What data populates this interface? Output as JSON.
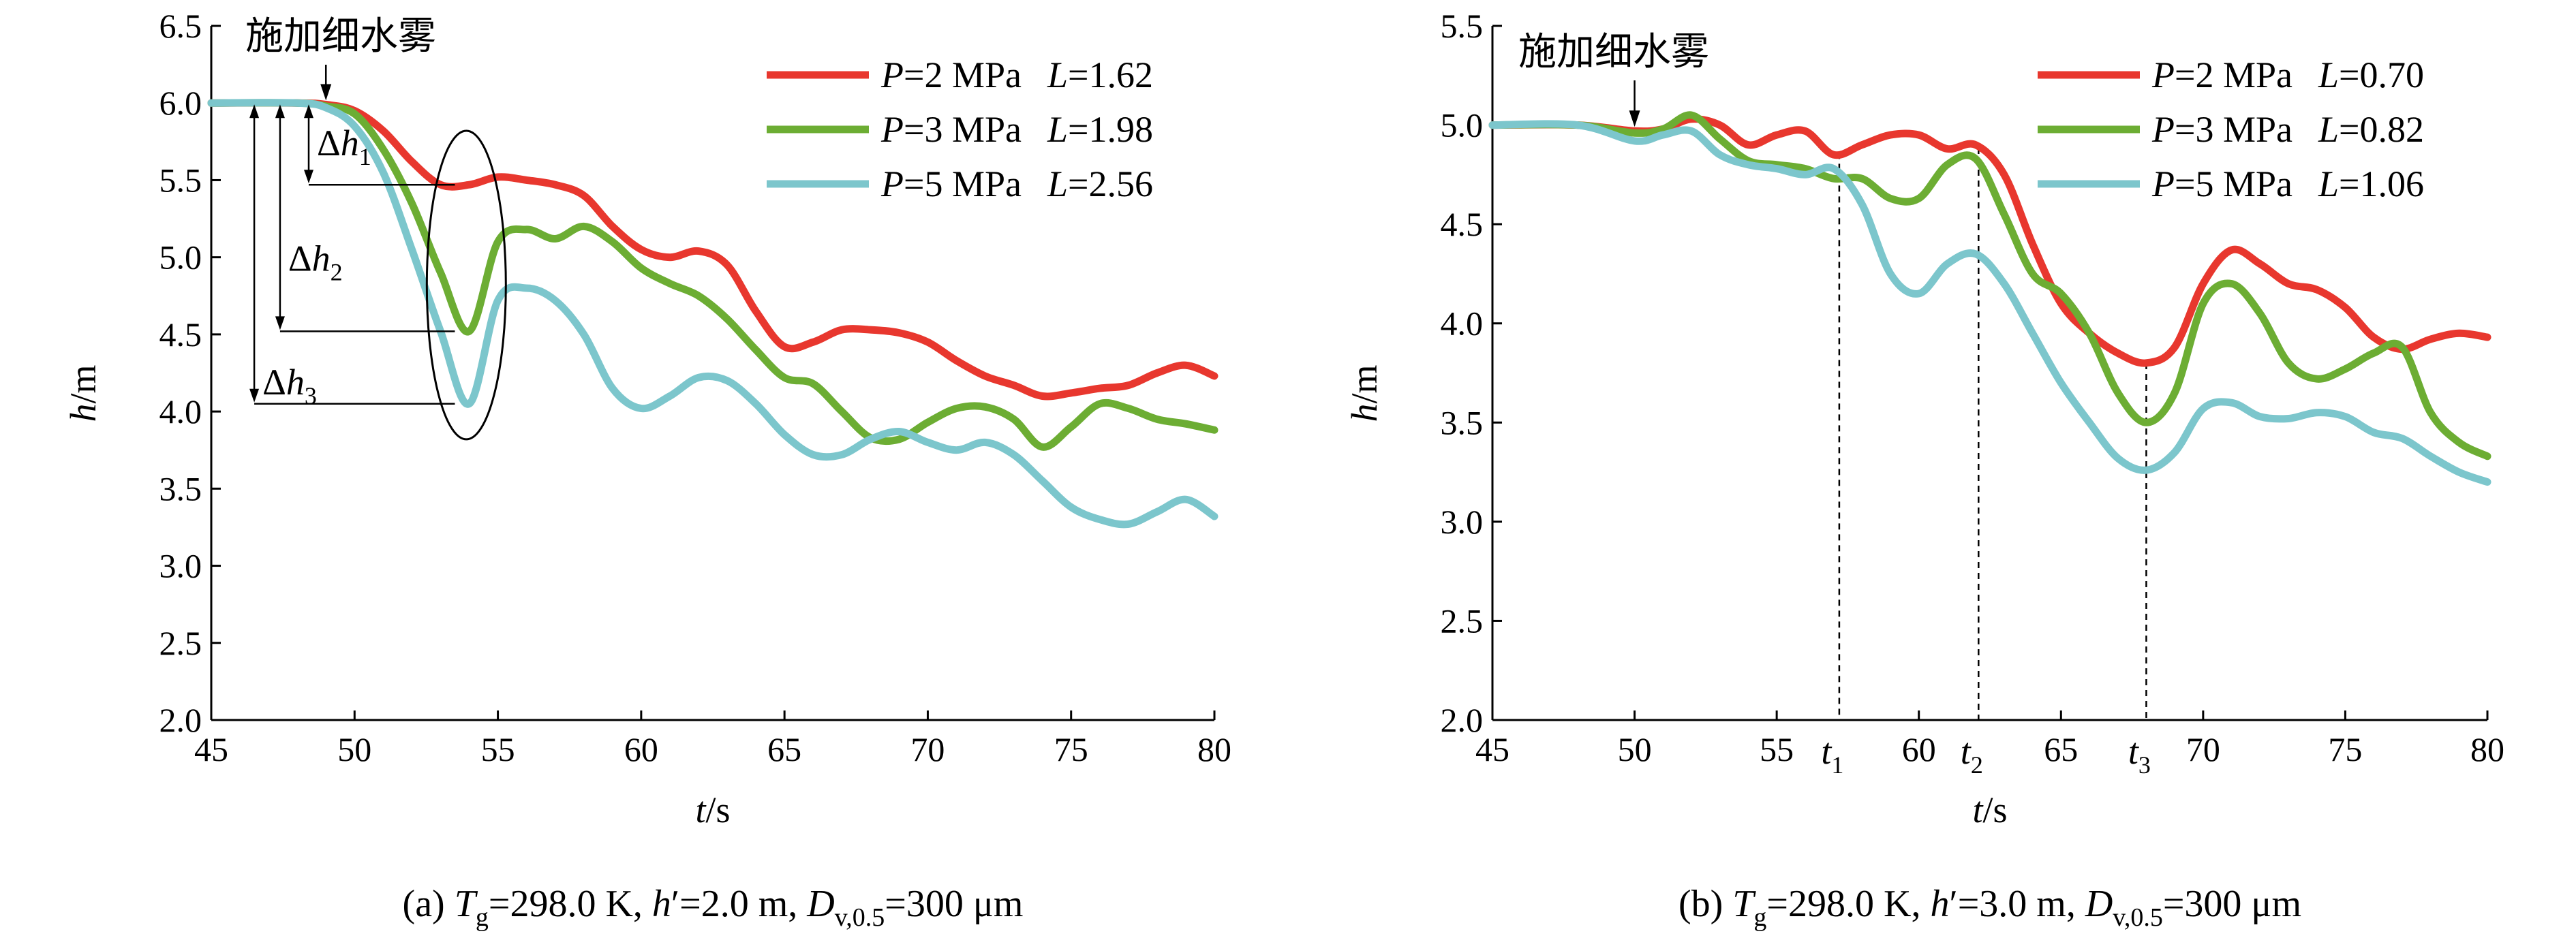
{
  "colors": {
    "p2": "#e8372e",
    "p3": "#6cad33",
    "p5": "#7cc6cc"
  },
  "chart_data": [
    {
      "type": "line",
      "panel": "a",
      "caption": {
        "prefix": "(a) ",
        "T": "T",
        "Tsub": "g",
        "part1": "=298.0 K, ",
        "h": "h",
        "part2": "′=2.0 m, ",
        "D": "D",
        "Dsub": "v,0.5",
        "part3": "=300 μm"
      },
      "xlabel": {
        "var": "t",
        "unit": "/s"
      },
      "ylabel": {
        "var": "h",
        "unit": "/m"
      },
      "xlim": [
        45,
        80
      ],
      "ylim": [
        2.0,
        6.5
      ],
      "xticks": [
        "45",
        "50",
        "55",
        "60",
        "65",
        "70",
        "75",
        "80"
      ],
      "yticks": [
        "2.0",
        "2.5",
        "3.0",
        "3.5",
        "4.0",
        "4.5",
        "5.0",
        "5.5",
        "6.0",
        "6.5"
      ],
      "annotation": {
        "text": "施加细水雾",
        "x": 49.0
      },
      "delta_labels": [
        {
          "sym": "Δ",
          "var": "h",
          "sub": "1"
        },
        {
          "sym": "Δ",
          "var": "h",
          "sub": "2"
        },
        {
          "sym": "Δ",
          "var": "h",
          "sub": "3"
        }
      ],
      "series": [
        {
          "name": "P=2 MPa  L=1.62",
          "p": "P",
          "pval": "=2 MPa",
          "l": "L",
          "lval": "=1.62",
          "color": "#e8372e",
          "points": [
            [
              45,
              6.0
            ],
            [
              48,
              6.0
            ],
            [
              49,
              5.99
            ],
            [
              50,
              5.95
            ],
            [
              51,
              5.82
            ],
            [
              52,
              5.62
            ],
            [
              53,
              5.47
            ],
            [
              54,
              5.47
            ],
            [
              55,
              5.52
            ],
            [
              56,
              5.5
            ],
            [
              57,
              5.47
            ],
            [
              58,
              5.4
            ],
            [
              59,
              5.2
            ],
            [
              60,
              5.05
            ],
            [
              61,
              5.0
            ],
            [
              62,
              5.04
            ],
            [
              63,
              4.95
            ],
            [
              64,
              4.65
            ],
            [
              65,
              4.42
            ],
            [
              66,
              4.45
            ],
            [
              67,
              4.53
            ],
            [
              68,
              4.53
            ],
            [
              69,
              4.51
            ],
            [
              70,
              4.45
            ],
            [
              71,
              4.33
            ],
            [
              72,
              4.23
            ],
            [
              73,
              4.17
            ],
            [
              74,
              4.1
            ],
            [
              75,
              4.12
            ],
            [
              76,
              4.15
            ],
            [
              77,
              4.17
            ],
            [
              78,
              4.25
            ],
            [
              79,
              4.3
            ],
            [
              80,
              4.23
            ]
          ]
        },
        {
          "name": "P=3 MPa  L=1.98",
          "p": "P",
          "pval": "=3 MPa",
          "l": "L",
          "lval": "=1.98",
          "color": "#6cad33",
          "points": [
            [
              45,
              6.0
            ],
            [
              48,
              6.0
            ],
            [
              49,
              5.98
            ],
            [
              50,
              5.93
            ],
            [
              51,
              5.7
            ],
            [
              52,
              5.35
            ],
            [
              53,
              4.9
            ],
            [
              54,
              4.52
            ],
            [
              55,
              5.1
            ],
            [
              56,
              5.18
            ],
            [
              57,
              5.12
            ],
            [
              58,
              5.2
            ],
            [
              59,
              5.1
            ],
            [
              60,
              4.93
            ],
            [
              61,
              4.83
            ],
            [
              62,
              4.75
            ],
            [
              63,
              4.6
            ],
            [
              64,
              4.4
            ],
            [
              65,
              4.22
            ],
            [
              66,
              4.18
            ],
            [
              67,
              4.0
            ],
            [
              68,
              3.83
            ],
            [
              69,
              3.82
            ],
            [
              70,
              3.93
            ],
            [
              71,
              4.02
            ],
            [
              72,
              4.03
            ],
            [
              73,
              3.95
            ],
            [
              74,
              3.77
            ],
            [
              75,
              3.9
            ],
            [
              76,
              4.05
            ],
            [
              77,
              4.02
            ],
            [
              78,
              3.95
            ],
            [
              79,
              3.92
            ],
            [
              80,
              3.88
            ]
          ]
        },
        {
          "name": "P=5 MPa  L=2.56",
          "p": "P",
          "pval": "=5 MPa",
          "l": "L",
          "lval": "=2.56",
          "color": "#7cc6cc",
          "points": [
            [
              45,
              6.0
            ],
            [
              48,
              6.0
            ],
            [
              49,
              5.97
            ],
            [
              50,
              5.85
            ],
            [
              51,
              5.55
            ],
            [
              52,
              5.05
            ],
            [
              53,
              4.52
            ],
            [
              54,
              4.05
            ],
            [
              55,
              4.72
            ],
            [
              56,
              4.8
            ],
            [
              57,
              4.72
            ],
            [
              58,
              4.5
            ],
            [
              59,
              4.15
            ],
            [
              60,
              4.02
            ],
            [
              61,
              4.1
            ],
            [
              62,
              4.22
            ],
            [
              63,
              4.2
            ],
            [
              64,
              4.05
            ],
            [
              65,
              3.85
            ],
            [
              66,
              3.72
            ],
            [
              67,
              3.72
            ],
            [
              68,
              3.82
            ],
            [
              69,
              3.87
            ],
            [
              70,
              3.8
            ],
            [
              71,
              3.75
            ],
            [
              72,
              3.8
            ],
            [
              73,
              3.72
            ],
            [
              74,
              3.55
            ],
            [
              75,
              3.38
            ],
            [
              76,
              3.3
            ],
            [
              77,
              3.27
            ],
            [
              78,
              3.35
            ],
            [
              79,
              3.43
            ],
            [
              80,
              3.32
            ]
          ]
        }
      ]
    },
    {
      "type": "line",
      "panel": "b",
      "caption": {
        "prefix": "(b) ",
        "T": "T",
        "Tsub": "g",
        "part1": "=298.0 K, ",
        "h": "h",
        "part2": "′=3.0 m, ",
        "D": "D",
        "Dsub": "v,0.5",
        "part3": "=300 μm"
      },
      "xlabel": {
        "var": "t",
        "unit": "/s"
      },
      "ylabel": {
        "var": "h",
        "unit": "/m"
      },
      "xlim": [
        45,
        80
      ],
      "ylim": [
        2.0,
        5.5
      ],
      "xticks": [
        "45",
        "50",
        "55",
        "60",
        "65",
        "70",
        "75",
        "80"
      ],
      "yticks": [
        "2.0",
        "2.5",
        "3.0",
        "3.5",
        "4.0",
        "4.5",
        "5.0",
        "5.5"
      ],
      "annotation": {
        "text": "施加细水雾",
        "x": 50.0
      },
      "t_markers": [
        {
          "var": "t",
          "sub": "1",
          "x": 57.2
        },
        {
          "var": "t",
          "sub": "2",
          "x": 62.1
        },
        {
          "var": "t",
          "sub": "3",
          "x": 68.0
        }
      ],
      "series": [
        {
          "name": "P=2 MPa  L=0.70",
          "p": "P",
          "pval": "=2 MPa",
          "l": "L",
          "lval": "=0.70",
          "color": "#e8372e",
          "points": [
            [
              45,
              5.0
            ],
            [
              48,
              5.0
            ],
            [
              50,
              4.97
            ],
            [
              51,
              4.98
            ],
            [
              52,
              5.03
            ],
            [
              53,
              5.0
            ],
            [
              54,
              4.9
            ],
            [
              55,
              4.95
            ],
            [
              56,
              4.97
            ],
            [
              57,
              4.85
            ],
            [
              58,
              4.9
            ],
            [
              59,
              4.95
            ],
            [
              60,
              4.95
            ],
            [
              61,
              4.88
            ],
            [
              62,
              4.9
            ],
            [
              63,
              4.75
            ],
            [
              64,
              4.4
            ],
            [
              65,
              4.1
            ],
            [
              66,
              3.95
            ],
            [
              67,
              3.85
            ],
            [
              68,
              3.8
            ],
            [
              69,
              3.88
            ],
            [
              70,
              4.2
            ],
            [
              71,
              4.37
            ],
            [
              72,
              4.3
            ],
            [
              73,
              4.2
            ],
            [
              74,
              4.17
            ],
            [
              75,
              4.08
            ],
            [
              76,
              3.93
            ],
            [
              77,
              3.87
            ],
            [
              78,
              3.92
            ],
            [
              79,
              3.95
            ],
            [
              80,
              3.93
            ]
          ]
        },
        {
          "name": "P=3 MPa  L=0.82",
          "p": "P",
          "pval": "=3 MPa",
          "l": "L",
          "lval": "=0.82",
          "color": "#6cad33",
          "points": [
            [
              45,
              5.0
            ],
            [
              48,
              5.0
            ],
            [
              50,
              4.96
            ],
            [
              51,
              4.98
            ],
            [
              52,
              5.05
            ],
            [
              53,
              4.93
            ],
            [
              54,
              4.82
            ],
            [
              55,
              4.8
            ],
            [
              56,
              4.78
            ],
            [
              57,
              4.73
            ],
            [
              58,
              4.73
            ],
            [
              59,
              4.63
            ],
            [
              60,
              4.63
            ],
            [
              61,
              4.8
            ],
            [
              62,
              4.83
            ],
            [
              63,
              4.55
            ],
            [
              64,
              4.25
            ],
            [
              65,
              4.15
            ],
            [
              66,
              3.95
            ],
            [
              67,
              3.65
            ],
            [
              68,
              3.5
            ],
            [
              69,
              3.65
            ],
            [
              70,
              4.1
            ],
            [
              71,
              4.2
            ],
            [
              72,
              4.05
            ],
            [
              73,
              3.8
            ],
            [
              74,
              3.72
            ],
            [
              75,
              3.77
            ],
            [
              76,
              3.85
            ],
            [
              77,
              3.88
            ],
            [
              78,
              3.55
            ],
            [
              79,
              3.4
            ],
            [
              80,
              3.33
            ]
          ]
        },
        {
          "name": "P=5 MPa  L=1.06",
          "p": "P",
          "pval": "=5 MPa",
          "l": "L",
          "lval": "=1.06",
          "color": "#7cc6cc",
          "points": [
            [
              45,
              5.0
            ],
            [
              48,
              5.0
            ],
            [
              50,
              4.92
            ],
            [
              51,
              4.95
            ],
            [
              52,
              4.97
            ],
            [
              53,
              4.85
            ],
            [
              54,
              4.8
            ],
            [
              55,
              4.78
            ],
            [
              56,
              4.75
            ],
            [
              57,
              4.78
            ],
            [
              58,
              4.6
            ],
            [
              59,
              4.25
            ],
            [
              60,
              4.15
            ],
            [
              61,
              4.3
            ],
            [
              62,
              4.35
            ],
            [
              63,
              4.2
            ],
            [
              64,
              3.95
            ],
            [
              65,
              3.7
            ],
            [
              66,
              3.5
            ],
            [
              67,
              3.32
            ],
            [
              68,
              3.26
            ],
            [
              69,
              3.35
            ],
            [
              70,
              3.57
            ],
            [
              71,
              3.6
            ],
            [
              72,
              3.53
            ],
            [
              73,
              3.52
            ],
            [
              74,
              3.55
            ],
            [
              75,
              3.53
            ],
            [
              76,
              3.45
            ],
            [
              77,
              3.42
            ],
            [
              78,
              3.33
            ],
            [
              79,
              3.25
            ],
            [
              80,
              3.2
            ]
          ]
        }
      ]
    }
  ]
}
